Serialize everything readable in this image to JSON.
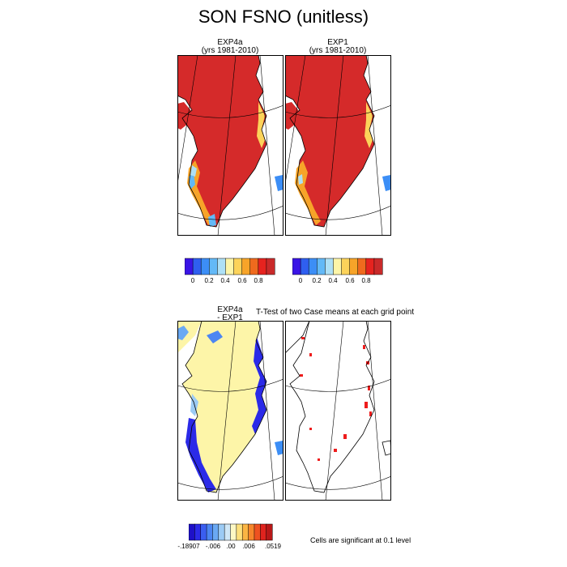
{
  "title": "SON FSNO (unitless)",
  "panels": {
    "exp4a": {
      "line1": "EXP4a",
      "line2": "(yrs 1981-2010)"
    },
    "exp1": {
      "line1": "EXP1",
      "line2": "(yrs 1981-2010)"
    },
    "diff": {
      "line1": "EXP4a",
      "line2": "- EXP1"
    },
    "ttest": {
      "title": "T-Test of two Case means at each grid point"
    }
  },
  "colorbar_top": {
    "colors": [
      "#3a14e6",
      "#2f5ff0",
      "#3c8ef6",
      "#63b9f7",
      "#aee0f6",
      "#fdf5a8",
      "#fcd35a",
      "#f7a429",
      "#ef6a1e",
      "#e6231f",
      "#c92a2a"
    ],
    "ticks": [
      "0",
      "0.2",
      "0.4",
      "0.6",
      "0.8"
    ]
  },
  "colorbar_bottom": {
    "colors": [
      "#1e10c8",
      "#2b2ae8",
      "#3a5ef0",
      "#4c86f2",
      "#6aa9f3",
      "#9ccbf4",
      "#cfe7f7",
      "#fdf8c4",
      "#fde07c",
      "#fbb543",
      "#f6862b",
      "#ee5220",
      "#e0231e",
      "#b81818"
    ],
    "ticks": [
      "-.18907",
      "-.006",
      ".00",
      ".006",
      ".0519"
    ]
  },
  "significance_note": "Cells are significant at 0.1 level",
  "map_colors": {
    "land_top": "#d52a2a",
    "land_diff": "#fdf5a8",
    "edge_blue": "#2b2ae8",
    "sig_red": "#ee1c1c"
  }
}
